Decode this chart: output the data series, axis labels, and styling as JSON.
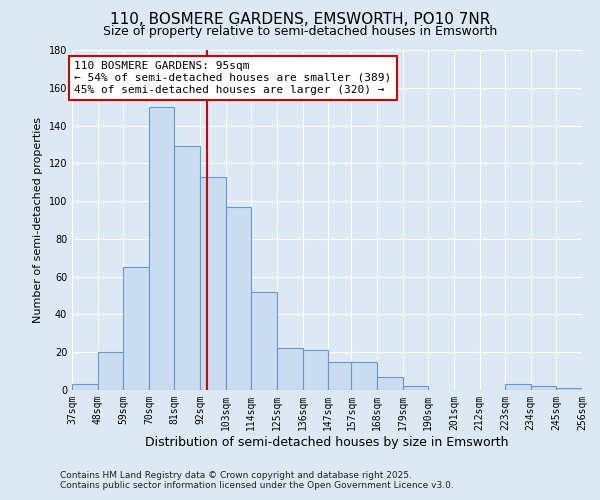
{
  "title1": "110, BOSMERE GARDENS, EMSWORTH, PO10 7NR",
  "title2": "Size of property relative to semi-detached houses in Emsworth",
  "xlabel": "Distribution of semi-detached houses by size in Emsworth",
  "ylabel": "Number of semi-detached properties",
  "bins_left": [
    37,
    48,
    59,
    70,
    81,
    92,
    103,
    114,
    125,
    136,
    147,
    157,
    168,
    179,
    190,
    201,
    212,
    223,
    234,
    245
  ],
  "bin_width": 11,
  "bar_heights": [
    3,
    20,
    65,
    150,
    129,
    113,
    97,
    52,
    22,
    21,
    15,
    15,
    7,
    2,
    0,
    0,
    0,
    3,
    2,
    1
  ],
  "bar_facecolor": "#c9dcf0",
  "bar_edgecolor": "#6699cc",
  "bar_linewidth": 0.8,
  "vline_x": 95,
  "vline_color": "#cc0000",
  "vline_linewidth": 1.5,
  "annotation_title": "110 BOSMERE GARDENS: 95sqm",
  "annotation_line1": "← 54% of semi-detached houses are smaller (389)",
  "annotation_line2": "45% of semi-detached houses are larger (320) →",
  "annotation_box_edgecolor": "#cc0000",
  "annotation_box_facecolor": "#ffffff",
  "tick_labels": [
    "37sqm",
    "48sqm",
    "59sqm",
    "70sqm",
    "81sqm",
    "92sqm",
    "103sqm",
    "114sqm",
    "125sqm",
    "136sqm",
    "147sqm",
    "157sqm",
    "168sqm",
    "179sqm",
    "190sqm",
    "201sqm",
    "212sqm",
    "223sqm",
    "234sqm",
    "245sqm",
    "256sqm"
  ],
  "ylim": [
    0,
    180
  ],
  "yticks": [
    0,
    20,
    40,
    60,
    80,
    100,
    120,
    140,
    160,
    180
  ],
  "bg_color": "#dce9f5",
  "plot_bg_color": "#dce9f5",
  "footer_line1": "Contains HM Land Registry data © Crown copyright and database right 2025.",
  "footer_line2": "Contains public sector information licensed under the Open Government Licence v3.0.",
  "title1_fontsize": 11,
  "title2_fontsize": 9,
  "xlabel_fontsize": 9,
  "ylabel_fontsize": 8,
  "tick_fontsize": 7,
  "footer_fontsize": 6.5,
  "annotation_fontsize": 8
}
